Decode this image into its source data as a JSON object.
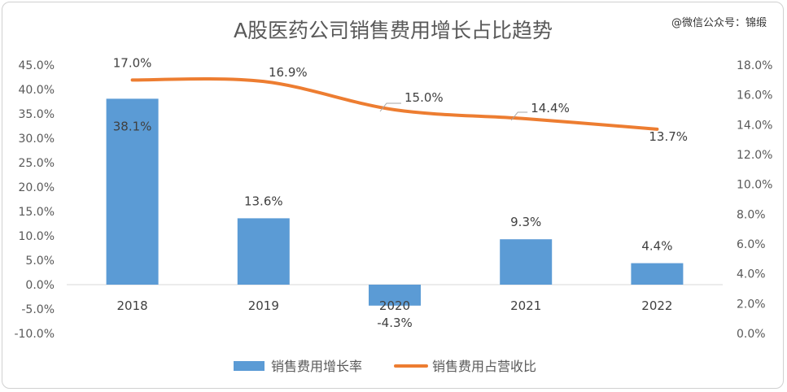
{
  "watermark": "@微信公众号：锦缎",
  "chart_data": {
    "type": "bar",
    "title": "A股医药公司销售费用增长占比趋势",
    "categories": [
      "2018",
      "2019",
      "2020",
      "2021",
      "2022"
    ],
    "series": [
      {
        "name": "销售费用增长率",
        "type": "bar",
        "axis": "left",
        "values": [
          38.1,
          13.6,
          -4.3,
          9.3,
          4.4
        ],
        "labels": [
          "38.1%",
          "13.6%",
          "-4.3%",
          "9.3%",
          "4.4%"
        ],
        "color": "#5b9bd5"
      },
      {
        "name": "销售费用占营收比",
        "type": "line",
        "axis": "right",
        "values": [
          17.0,
          16.9,
          15.0,
          14.4,
          13.7
        ],
        "labels": [
          "17.0%",
          "16.9%",
          "15.0%",
          "14.4%",
          "13.7%"
        ],
        "color": "#ed7d31"
      }
    ],
    "y_left": {
      "min": -10,
      "max": 45,
      "ticks": [
        "-10.0%",
        "-5.0%",
        "0.0%",
        "5.0%",
        "10.0%",
        "15.0%",
        "20.0%",
        "25.0%",
        "30.0%",
        "35.0%",
        "40.0%",
        "45.0%"
      ]
    },
    "y_right": {
      "min": 0,
      "max": 18,
      "ticks": [
        "0.0%",
        "2.0%",
        "4.0%",
        "6.0%",
        "8.0%",
        "10.0%",
        "12.0%",
        "14.0%",
        "16.0%",
        "18.0%"
      ]
    },
    "grid": false,
    "legend": "bottom"
  }
}
